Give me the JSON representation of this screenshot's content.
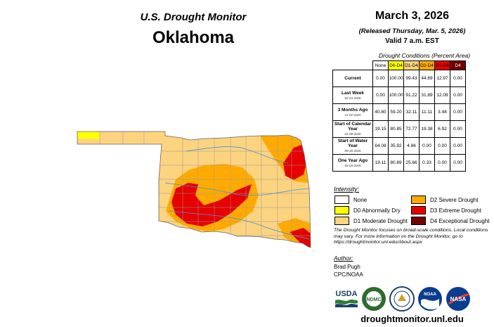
{
  "header": {
    "subtitle": "U.S. Drought Monitor",
    "state": "Oklahoma"
  },
  "date": "March 3, 2026",
  "released": "(Released Thursday, Mar. 5, 2026)",
  "valid": "Valid 7 a.m. EST",
  "table": {
    "caption": "Drought Conditions (Percent Area)",
    "columns": [
      "None",
      "D0-D4",
      "D1-D4",
      "D2-D4",
      "D3-D4",
      "D4"
    ],
    "column_colors": [
      "#ffffff",
      "#ffff00",
      "#fcd37f",
      "#ffaa00",
      "#e60000",
      "#730000"
    ],
    "rows": [
      {
        "label": "Current",
        "date": "",
        "values": [
          "0.00",
          "100.00",
          "99.43",
          "44.89",
          "12.97",
          "0.00"
        ]
      },
      {
        "label": "Last Week",
        "date": "02-24-2026",
        "values": [
          "0.00",
          "100.00",
          "91.22",
          "31.89",
          "12.08",
          "0.00"
        ]
      },
      {
        "label": "3 Months Ago",
        "date": "12-02-2025",
        "values": [
          "40.80",
          "59.20",
          "32.11",
          "11.11",
          "3.48",
          "0.00"
        ]
      },
      {
        "label": "Start of Calendar Year",
        "date": "01-06-2026",
        "values": [
          "19.15",
          "80.85",
          "72.77",
          "19.38",
          "6.92",
          "0.00"
        ]
      },
      {
        "label": "Start of Water Year",
        "date": "09-30-2025",
        "values": [
          "64.08",
          "35.92",
          "4.86",
          "0.00",
          "0.00",
          "0.00"
        ]
      },
      {
        "label": "One Year Ago",
        "date": "03-04-2025",
        "values": [
          "19.11",
          "80.89",
          "25.66",
          "0.33",
          "0.00",
          "0.00"
        ]
      }
    ]
  },
  "legend": {
    "title": "Intensity:",
    "items": [
      {
        "label": "None",
        "color": "#ffffff"
      },
      {
        "label": "D0 Abnormally Dry",
        "color": "#ffff00"
      },
      {
        "label": "D1 Moderate Drought",
        "color": "#fcd37f"
      },
      {
        "label": "D2 Severe Drought",
        "color": "#ffaa00"
      },
      {
        "label": "D3 Extreme Drought",
        "color": "#e60000"
      },
      {
        "label": "D4 Exceptional Drought",
        "color": "#730000"
      }
    ]
  },
  "note": "The Drought Monitor focuses on broad-scale conditions. Local conditions may vary. For more information on the Drought Monitor, go to https://droughtmonitor.unl.edu/About.aspx",
  "author": {
    "title": "Author:",
    "name": "Brad Pugh",
    "org": "CPC/NOAA"
  },
  "logos": {
    "usda": "USDA",
    "ndmc": "NDMC",
    "noaa": "NOAA",
    "nasa": "NASA"
  },
  "url": "droughtmonitor.unl.edu"
}
